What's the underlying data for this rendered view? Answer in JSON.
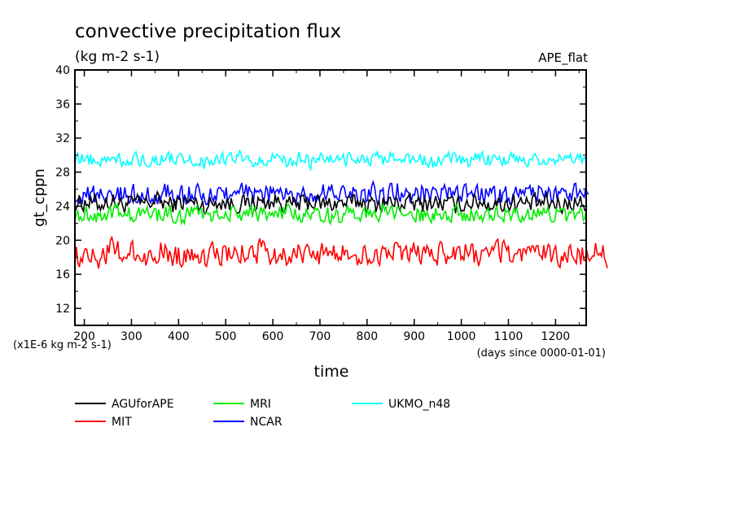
{
  "chart_data": {
    "type": "line",
    "title": "convective precipitation flux",
    "subtitle": "(kg m-2 s-1)",
    "experiment": "APE_flat",
    "ylabel": "gt_cppn",
    "xlabel": "time",
    "x_unit": "(days since 0000-01-01)",
    "y_unit": "(x1E-6 kg m-2 s-1)",
    "xlim": [
      180,
      1265
    ],
    "ylim": [
      10,
      40
    ],
    "x_ticks": [
      "200",
      "300",
      "400",
      "500",
      "600",
      "700",
      "800",
      "900",
      "1000",
      "1100",
      "1200"
    ],
    "y_ticks": [
      "12",
      "16",
      "20",
      "24",
      "28",
      "32",
      "36",
      "40"
    ],
    "series": [
      {
        "name": "AGUforAPE",
        "color": "#000000",
        "x_start": 180,
        "x_end": 1265,
        "values": [
          24.3,
          24.5,
          24.2,
          24.6,
          24.1,
          24.4,
          24.3,
          24.7,
          24.2,
          24.5,
          24.4,
          24.0,
          24.6,
          24.3,
          24.2,
          24.5,
          24.4,
          24.6,
          24.1,
          24.3,
          24.5,
          24.2,
          24.4,
          24.3,
          24.6,
          24.1,
          24.5,
          24.3,
          24.4,
          24.2,
          24.5,
          24.3,
          24.1,
          24.4,
          24.6,
          24.2,
          24.3,
          24.5,
          24.2,
          24.4,
          24.3,
          24.1,
          24.5,
          24.2
        ]
      },
      {
        "name": "MIT",
        "color": "#ff0000",
        "x_start": 180,
        "x_end": 1310,
        "values": [
          18.2,
          18.6,
          18.0,
          18.9,
          18.3,
          18.5,
          17.9,
          18.7,
          18.4,
          18.1,
          18.8,
          18.2,
          18.5,
          18.0,
          18.6,
          18.3,
          18.9,
          18.1,
          18.4,
          18.6,
          18.0,
          18.5,
          18.2,
          18.7,
          18.3,
          18.0,
          18.6,
          18.4,
          18.1,
          18.8,
          18.2,
          18.5,
          18.3,
          18.6,
          18.0,
          18.4,
          18.7,
          18.2,
          18.5,
          18.1,
          18.6,
          18.3,
          18.4,
          18.2,
          18.5,
          18.1
        ]
      },
      {
        "name": "MRI",
        "color": "#00ee00",
        "x_start": 180,
        "x_end": 1265,
        "values": [
          23.0,
          23.2,
          22.8,
          23.4,
          23.1,
          22.9,
          23.3,
          23.0,
          23.2,
          22.7,
          23.5,
          23.1,
          22.9,
          23.2,
          23.0,
          23.4,
          22.8,
          23.1,
          23.3,
          22.9,
          23.2,
          23.0,
          22.8,
          23.3,
          23.1,
          22.9,
          23.2,
          23.0,
          23.4,
          22.8,
          23.1,
          22.9,
          23.2,
          23.0,
          22.7,
          23.3,
          23.1,
          22.9,
          23.2,
          23.0,
          23.1,
          22.8,
          23.2,
          23.0
        ]
      },
      {
        "name": "NCAR",
        "color": "#0000ff",
        "x_start": 180,
        "x_end": 1270,
        "values": [
          25.2,
          25.5,
          25.0,
          25.8,
          25.3,
          25.6,
          25.1,
          25.4,
          25.7,
          25.2,
          25.5,
          24.9,
          25.6,
          25.3,
          25.8,
          25.1,
          25.4,
          25.6,
          25.2,
          25.5,
          25.0,
          25.7,
          25.3,
          25.4,
          25.1,
          25.6,
          25.3,
          25.8,
          25.2,
          25.5,
          25.0,
          25.4,
          25.6,
          25.2,
          25.7,
          25.3,
          25.1,
          25.5,
          25.4,
          25.6,
          25.2,
          25.3,
          25.5,
          25.4
        ]
      },
      {
        "name": "UKMO_n48",
        "color": "#00ffff",
        "x_start": 180,
        "x_end": 1265,
        "values": [
          29.3,
          29.6,
          29.1,
          29.8,
          29.4,
          29.7,
          29.2,
          29.5,
          29.8,
          29.3,
          29.6,
          29.0,
          29.7,
          29.4,
          29.9,
          29.2,
          29.5,
          29.7,
          29.3,
          29.6,
          29.1,
          29.8,
          29.4,
          29.5,
          29.2,
          29.7,
          29.4,
          29.9,
          29.3,
          29.6,
          29.1,
          29.5,
          29.7,
          29.3,
          29.8,
          29.4,
          29.2,
          29.6,
          29.5,
          29.7,
          29.3,
          29.4,
          29.6,
          29.5
        ]
      }
    ],
    "legend_position": "bottom-left"
  }
}
